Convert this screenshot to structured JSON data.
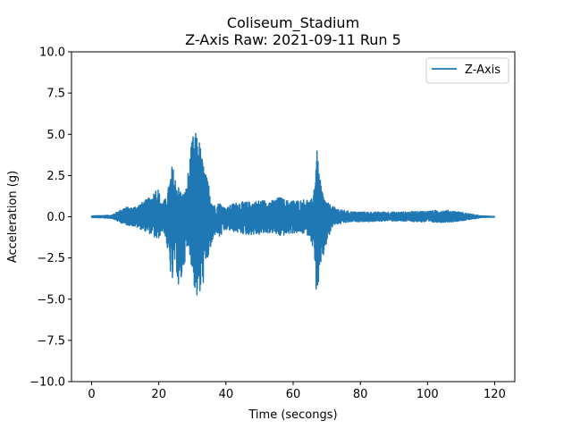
{
  "chart_data": {
    "type": "line",
    "title": "Coliseum_Stadium",
    "subtitle": "Z-Axis Raw: 2021-09-11 Run 5",
    "xlabel": "Time (secongs)",
    "ylabel": "Acceleration (g)",
    "xlim": [
      -6,
      126
    ],
    "ylim": [
      -10,
      10
    ],
    "xticks": [
      0,
      20,
      40,
      60,
      80,
      100,
      120
    ],
    "xtick_labels": [
      "0",
      "20",
      "40",
      "60",
      "80",
      "100",
      "120"
    ],
    "yticks": [
      10,
      7.5,
      5,
      2.5,
      0,
      -2.5,
      -5,
      -7.5,
      -10
    ],
    "ytick_labels": [
      "10.0",
      "7.5",
      "5.0",
      "2.5",
      "0.0",
      "−2.5",
      "−5.0",
      "−7.5",
      "−10.0"
    ],
    "grid": false,
    "legend_position": "upper right",
    "series": [
      {
        "name": "Z-Axis",
        "color": "#1f77b4",
        "x": [
          0,
          6,
          8,
          10,
          12,
          14,
          16,
          18,
          19.5,
          21,
          22,
          23,
          24,
          25,
          26,
          27,
          28,
          29,
          30,
          31,
          32,
          33,
          34,
          35,
          36,
          37,
          38,
          40,
          42,
          44,
          46,
          48,
          50,
          52,
          54,
          56,
          58,
          60,
          62,
          64,
          65,
          66,
          67,
          68,
          69,
          70,
          72,
          74,
          76,
          78,
          80,
          84,
          88,
          92,
          96,
          100,
          104,
          108,
          112,
          116,
          120
        ],
        "ymax": [
          0.05,
          0.1,
          0.35,
          0.6,
          0.55,
          0.75,
          1.0,
          1.3,
          1.9,
          0.9,
          1.1,
          1.9,
          3.2,
          2.3,
          1.8,
          1.4,
          1.6,
          3.2,
          4.9,
          5.1,
          4.8,
          3.5,
          2.6,
          1.9,
          0.9,
          0.6,
          0.9,
          0.5,
          0.8,
          0.9,
          0.9,
          0.9,
          1.0,
          1.0,
          1.0,
          1.2,
          1.0,
          1.0,
          1.0,
          1.1,
          0.9,
          1.3,
          4.2,
          2.3,
          1.3,
          0.9,
          0.6,
          0.45,
          0.35,
          0.3,
          0.3,
          0.28,
          0.3,
          0.28,
          0.32,
          0.35,
          0.4,
          0.35,
          0.2,
          0.05,
          0.02
        ],
        "ymin": [
          -0.05,
          -0.1,
          -0.3,
          -0.5,
          -0.55,
          -0.7,
          -0.9,
          -1.1,
          -1.5,
          -0.9,
          -1.2,
          -2.8,
          -4.2,
          -2.5,
          -5.0,
          -3.5,
          -2.5,
          -1.9,
          -3.5,
          -4.9,
          -5.1,
          -4.3,
          -3.3,
          -2.2,
          -1.7,
          -0.9,
          -1.3,
          -0.8,
          -0.9,
          -1.0,
          -1.1,
          -1.1,
          -1.1,
          -1.0,
          -1.0,
          -1.2,
          -1.1,
          -1.0,
          -1.0,
          -1.1,
          -1.2,
          -2.0,
          -4.9,
          -3.6,
          -2.5,
          -1.6,
          -0.5,
          -0.45,
          -0.35,
          -0.3,
          -0.3,
          -0.3,
          -0.25,
          -0.27,
          -0.3,
          -0.34,
          -0.35,
          -0.3,
          -0.2,
          -0.05,
          -0.02
        ]
      }
    ]
  }
}
